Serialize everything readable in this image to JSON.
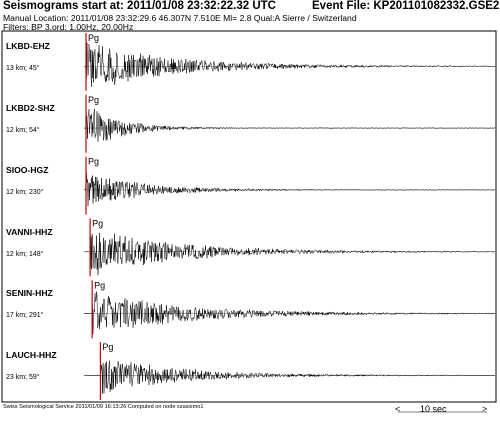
{
  "header": {
    "title": "Seismograms start at: 2011/01/08 23:32:22.32 UTC",
    "event_file": "Event File: KP201101082332.GSE2",
    "location": "Manual Location: 2011/01/08 23:32:29.6 46.307N 7.510E Ml= 2.8 Qual:A  Sierre / Switzerland",
    "filters": "Filters: BP 3.ord: 1.00Hz, 20.00Hz"
  },
  "footer": {
    "credit": "Swiss Seismological Service 2011/01/09 16:13:26 Computed on node szasismo1",
    "scale_left": "<",
    "scale_label": "10 sec",
    "scale_right": ">"
  },
  "chart_data": {
    "type": "line",
    "title": "Seismograms start at: 2011/01/08 23:32:22.32 UTC",
    "pick_label": "Pg",
    "colors": {
      "trace": "#000000",
      "pick": "#cc0000",
      "zero": "#888888"
    },
    "time_scale_seconds": 10,
    "series": [
      {
        "name": "LKBD-EHZ",
        "distance": "13 km; 45°",
        "pick_fraction": 0.0,
        "peak": 1.0,
        "decay": 0.9
      },
      {
        "name": "LKBD2-SHZ",
        "distance": "12 km; 54°",
        "pick_fraction": 0.0,
        "peak": 1.0,
        "decay": 0.35
      },
      {
        "name": "SIOO-HGZ",
        "distance": "12 km; 230°",
        "pick_fraction": 0.0,
        "peak": 0.7,
        "decay": 0.6
      },
      {
        "name": "VANNI-HHZ",
        "distance": "12 km; 148°",
        "pick_fraction": 0.01,
        "peak": 1.0,
        "decay": 0.9
      },
      {
        "name": "SENIN-HHZ",
        "distance": "17 km; 291°",
        "pick_fraction": 0.015,
        "peak": 1.0,
        "decay": 0.9
      },
      {
        "name": "LAUCH-HHZ",
        "distance": "23 km; 59°",
        "pick_fraction": 0.035,
        "peak": 0.8,
        "decay": 0.8
      }
    ]
  }
}
